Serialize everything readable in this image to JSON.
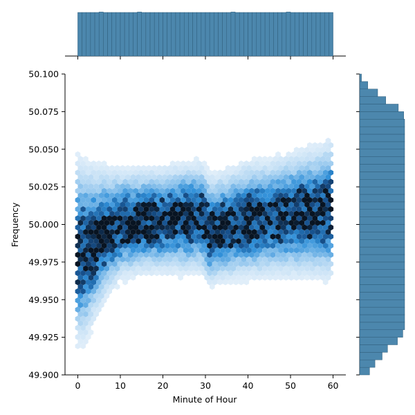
{
  "chart_data": {
    "type": "heatmap",
    "subtype": "hexbin-joint-plot",
    "title": "",
    "xlabel": "Minute of Hour",
    "ylabel": "Frequency",
    "xlim": [
      -3,
      63
    ],
    "ylim": [
      49.9,
      50.1
    ],
    "x_ticks": [
      0,
      10,
      20,
      30,
      40,
      50,
      60
    ],
    "y_ticks": [
      49.9,
      49.925,
      49.95,
      49.975,
      50.0,
      50.025,
      50.05,
      50.075,
      50.1
    ],
    "y_tick_labels": [
      "49.900",
      "49.925",
      "49.950",
      "49.975",
      "50.000",
      "50.025",
      "50.050",
      "50.075",
      "50.100"
    ],
    "colors": {
      "hex_light": "#eaf3fb",
      "hex_mid": "#2f8fd8",
      "hex_dark": "#0a1a2a",
      "marginal": "#4c87ad"
    },
    "grid": false,
    "density_profile": [
      {
        "x": 0,
        "center": 49.982,
        "spread": 0.032
      },
      {
        "x": 2,
        "center": 49.983,
        "spread": 0.03
      },
      {
        "x": 4,
        "center": 49.988,
        "spread": 0.026
      },
      {
        "x": 7,
        "center": 49.995,
        "spread": 0.022
      },
      {
        "x": 10,
        "center": 50.0,
        "spread": 0.019
      },
      {
        "x": 15,
        "center": 50.002,
        "spread": 0.018
      },
      {
        "x": 20,
        "center": 50.003,
        "spread": 0.018
      },
      {
        "x": 25,
        "center": 50.004,
        "spread": 0.019
      },
      {
        "x": 29,
        "center": 50.005,
        "spread": 0.019
      },
      {
        "x": 31,
        "center": 49.996,
        "spread": 0.019
      },
      {
        "x": 35,
        "center": 49.999,
        "spread": 0.019
      },
      {
        "x": 40,
        "center": 50.003,
        "spread": 0.02
      },
      {
        "x": 45,
        "center": 50.004,
        "spread": 0.02
      },
      {
        "x": 50,
        "center": 50.006,
        "spread": 0.021
      },
      {
        "x": 55,
        "center": 50.008,
        "spread": 0.022
      },
      {
        "x": 60,
        "center": 50.01,
        "spread": 0.024
      }
    ],
    "x_marginal": {
      "type": "histogram",
      "range": [
        0,
        60
      ],
      "bins": 60,
      "relative_heights": [
        1,
        1,
        1,
        1,
        1,
        1.01,
        1,
        1,
        1,
        1,
        1,
        1,
        1,
        1,
        1.01,
        1,
        1,
        1,
        1,
        1,
        1,
        1,
        1,
        1,
        1,
        1,
        1,
        1,
        1,
        1,
        1,
        1,
        1,
        1,
        1,
        1,
        1.01,
        1,
        1,
        1,
        1,
        1,
        1,
        1,
        1,
        1,
        1,
        1,
        1,
        1.01,
        1,
        1,
        1,
        1,
        1,
        1,
        1,
        1,
        1,
        1
      ]
    },
    "y_marginal": {
      "type": "histogram",
      "orientation": "horizontal",
      "bin_centers": [
        49.9025,
        49.9075,
        49.9125,
        49.9175,
        49.9225,
        49.9275,
        49.9325,
        49.9375,
        49.9425,
        49.9475,
        49.9525,
        49.9575,
        49.9625,
        49.9675,
        49.9725,
        49.9775,
        49.9825,
        49.9875,
        49.9925,
        49.9975,
        50.0025,
        50.0075,
        50.0125,
        50.0175,
        50.0225,
        50.0275,
        50.0325,
        50.0375,
        50.0425,
        50.0475,
        50.0525,
        50.0575,
        50.0625,
        50.0675,
        50.0725,
        50.0775,
        50.0825,
        50.0875,
        50.0925,
        50.0975
      ],
      "relative_widths": [
        0.22,
        0.34,
        0.5,
        0.62,
        0.84,
        0.96,
        1,
        1,
        1,
        1,
        1,
        1,
        1,
        1,
        1,
        1,
        1,
        1,
        1,
        1,
        1,
        1,
        1,
        1,
        1,
        1,
        1,
        1,
        1,
        1,
        1,
        1,
        1,
        1,
        0.98,
        0.86,
        0.58,
        0.4,
        0.18,
        0.04
      ]
    }
  }
}
